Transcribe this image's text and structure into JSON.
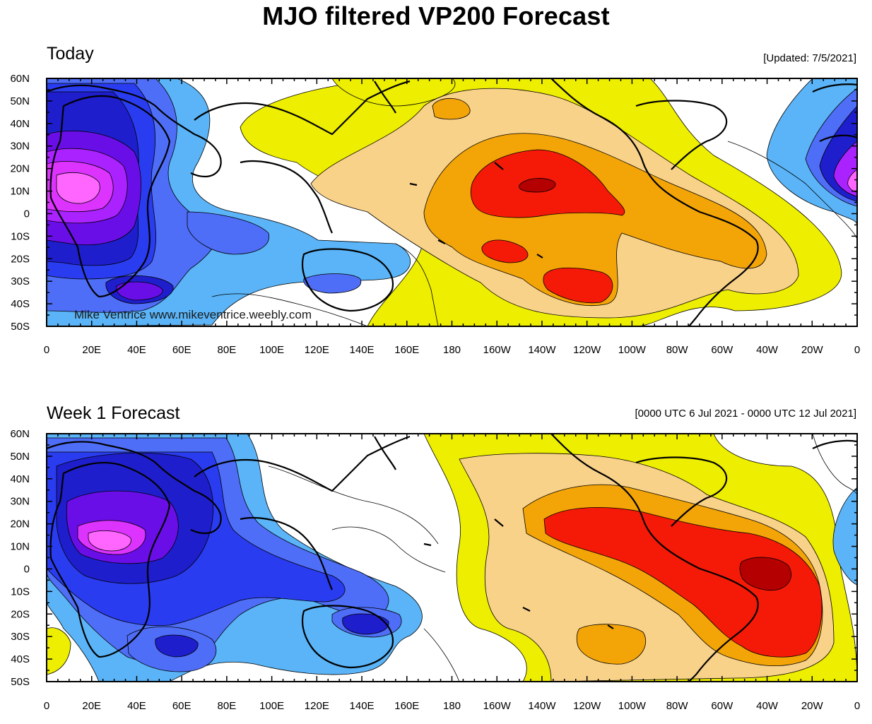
{
  "title": "MJO filtered VP200 Forecast",
  "colors": {
    "neg7": "#ff66ff",
    "neg6": "#dd33ff",
    "neg5": "#aa22ff",
    "neg4": "#6a0ee8",
    "neg3": "#1e1ecc",
    "neg2": "#2a3cf0",
    "neg1": "#4f6ef7",
    "neg0": "#5ab4f7",
    "pos1": "#eeee00",
    "pos2": "#f9d28a",
    "pos3": "#f3a407",
    "pos4": "#f41a07",
    "pos5": "#b40000",
    "line": "#000000",
    "land": "#000000"
  },
  "axes": {
    "lat_labels": [
      "60N",
      "50N",
      "40N",
      "30N",
      "20N",
      "10N",
      "0",
      "10S",
      "20S",
      "30S",
      "40S",
      "50S"
    ],
    "lon_labels": [
      "0",
      "20E",
      "40E",
      "60E",
      "80E",
      "100E",
      "120E",
      "140E",
      "160E",
      "180",
      "160W",
      "140W",
      "120W",
      "100W",
      "80W",
      "60W",
      "40W",
      "20W",
      "0"
    ]
  },
  "panels": [
    {
      "title": "Today",
      "note": "[Updated: 7/5/2021]",
      "credit": "Mike Ventrice www.mikeventrice.weebly.com"
    },
    {
      "title": "Week 1 Forecast",
      "note": "[0000 UTC 6 Jul 2021 - 0000 UTC 12 Jul 2021]"
    }
  ]
}
